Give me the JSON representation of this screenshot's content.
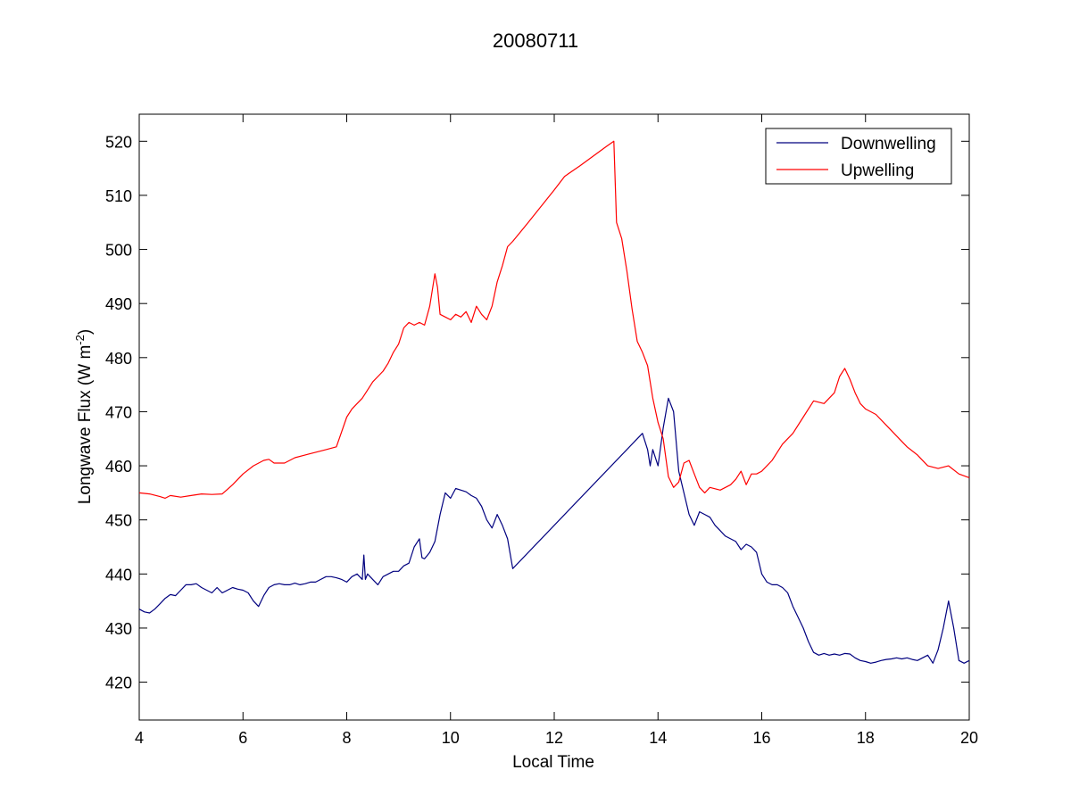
{
  "chart_data": {
    "type": "line",
    "title": "20080711",
    "xlabel": "Local Time",
    "ylabel": "Longwave Flux (W m",
    "ylabel_superscript": "-2",
    "ylabel_close": ")",
    "xlim": [
      4,
      20
    ],
    "ylim": [
      413,
      525
    ],
    "xticks": [
      4,
      6,
      8,
      10,
      12,
      14,
      16,
      18,
      20
    ],
    "xtick_labels": [
      "4",
      "6",
      "8",
      "10",
      "12",
      "14",
      "16",
      "18",
      "20"
    ],
    "yticks": [
      420,
      430,
      440,
      450,
      460,
      470,
      480,
      490,
      500,
      510,
      520
    ],
    "ytick_labels": [
      "420",
      "430",
      "440",
      "450",
      "460",
      "470",
      "480",
      "490",
      "500",
      "510",
      "520"
    ],
    "grid": false,
    "legend_position": "top-right",
    "series": [
      {
        "name": "Downwelling",
        "color": "#00007f",
        "x": [
          4.0,
          4.1,
          4.2,
          4.3,
          4.4,
          4.5,
          4.6,
          4.7,
          4.8,
          4.9,
          5.0,
          5.1,
          5.2,
          5.3,
          5.4,
          5.5,
          5.6,
          5.7,
          5.8,
          5.9,
          6.0,
          6.1,
          6.2,
          6.3,
          6.4,
          6.5,
          6.6,
          6.7,
          6.8,
          6.9,
          7.0,
          7.1,
          7.2,
          7.3,
          7.4,
          7.5,
          7.6,
          7.7,
          7.8,
          7.9,
          8.0,
          8.1,
          8.2,
          8.3,
          8.33,
          8.36,
          8.4,
          8.5,
          8.6,
          8.7,
          8.8,
          8.9,
          9.0,
          9.1,
          9.2,
          9.3,
          9.4,
          9.45,
          9.5,
          9.6,
          9.7,
          9.8,
          9.9,
          10.0,
          10.1,
          10.2,
          10.3,
          10.4,
          10.5,
          10.6,
          10.7,
          10.8,
          10.9,
          11.0,
          11.1,
          11.2,
          13.7,
          13.8,
          13.85,
          13.9,
          14.0,
          14.1,
          14.2,
          14.3,
          14.4,
          14.5,
          14.6,
          14.7,
          14.8,
          14.9,
          15.0,
          15.1,
          15.2,
          15.3,
          15.4,
          15.5,
          15.6,
          15.7,
          15.8,
          15.9,
          16.0,
          16.1,
          16.2,
          16.3,
          16.4,
          16.5,
          16.6,
          16.7,
          16.8,
          16.9,
          17.0,
          17.1,
          17.2,
          17.3,
          17.4,
          17.5,
          17.6,
          17.7,
          17.8,
          17.9,
          18.0,
          18.1,
          18.2,
          18.3,
          18.4,
          18.5,
          18.6,
          18.7,
          18.8,
          18.9,
          19.0,
          19.1,
          19.2,
          19.3,
          19.4,
          19.5,
          19.6,
          19.7,
          19.8,
          19.9,
          20.0
        ],
        "values": [
          433.5,
          433.0,
          432.8,
          433.5,
          434.5,
          435.5,
          436.2,
          436.0,
          437.0,
          438.0,
          438.0,
          438.2,
          437.5,
          437.0,
          436.5,
          437.5,
          436.5,
          437.0,
          437.5,
          437.2,
          437.0,
          436.5,
          435.0,
          434.0,
          436.0,
          437.5,
          438.0,
          438.2,
          438.0,
          438.0,
          438.3,
          438.0,
          438.2,
          438.5,
          438.5,
          439.0,
          439.5,
          439.5,
          439.3,
          439.0,
          438.5,
          439.5,
          440.0,
          439.0,
          443.5,
          439.0,
          440.0,
          439.0,
          438.0,
          439.5,
          440.0,
          440.5,
          440.5,
          441.5,
          442.0,
          445.0,
          446.5,
          443.0,
          442.8,
          444.0,
          446.0,
          451.0,
          455.0,
          454.0,
          455.8,
          455.5,
          455.2,
          454.5,
          454.0,
          452.5,
          450.0,
          448.5,
          451.0,
          449.0,
          446.5,
          441.0,
          466.0,
          463.0,
          460.0,
          463.0,
          460.0,
          467.0,
          472.5,
          470.0,
          459.0,
          455.0,
          451.0,
          449.0,
          451.5,
          451.0,
          450.5,
          449.0,
          448.0,
          447.0,
          446.5,
          446.0,
          444.5,
          445.5,
          445.0,
          444.0,
          440.0,
          438.5,
          438.0,
          438.0,
          437.5,
          436.5,
          434.0,
          432.0,
          430.0,
          427.5,
          425.5,
          425.0,
          425.3,
          425.0,
          425.2,
          425.0,
          425.3,
          425.2,
          424.5,
          424.0,
          423.8,
          423.5,
          423.7,
          424.0,
          424.2,
          424.3,
          424.5,
          424.3,
          424.5,
          424.2,
          424.0,
          424.5,
          425.0,
          423.5,
          426.0,
          430.0,
          435.0,
          430.0,
          424.0,
          423.5,
          424.0
        ]
      },
      {
        "name": "Upwelling",
        "color": "#ff0000",
        "x": [
          4.0,
          4.2,
          4.4,
          4.5,
          4.6,
          4.8,
          5.0,
          5.2,
          5.4,
          5.6,
          5.8,
          6.0,
          6.2,
          6.4,
          6.5,
          6.6,
          6.8,
          7.0,
          7.2,
          7.4,
          7.6,
          7.8,
          8.0,
          8.1,
          8.2,
          8.3,
          8.4,
          8.5,
          8.6,
          8.7,
          8.8,
          8.9,
          9.0,
          9.1,
          9.2,
          9.3,
          9.4,
          9.5,
          9.6,
          9.7,
          9.75,
          9.8,
          9.9,
          10.0,
          10.1,
          10.2,
          10.3,
          10.4,
          10.5,
          10.6,
          10.7,
          10.8,
          10.9,
          11.0,
          11.1,
          11.2,
          11.5,
          12.0,
          12.2,
          12.5,
          13.0,
          13.15,
          13.2,
          13.3,
          13.4,
          13.5,
          13.6,
          13.7,
          13.8,
          13.9,
          14.0,
          14.1,
          14.2,
          14.3,
          14.4,
          14.5,
          14.6,
          14.7,
          14.8,
          14.9,
          15.0,
          15.2,
          15.4,
          15.5,
          15.6,
          15.7,
          15.8,
          15.9,
          16.0,
          16.2,
          16.4,
          16.6,
          16.8,
          17.0,
          17.2,
          17.4,
          17.5,
          17.6,
          17.7,
          17.8,
          17.9,
          18.0,
          18.2,
          18.4,
          18.6,
          18.8,
          19.0,
          19.2,
          19.4,
          19.6,
          19.8,
          20.0
        ],
        "values": [
          455.0,
          454.8,
          454.3,
          454.0,
          454.5,
          454.2,
          454.5,
          454.8,
          454.7,
          454.8,
          456.5,
          458.5,
          460.0,
          461.0,
          461.2,
          460.5,
          460.5,
          461.5,
          462.0,
          462.5,
          463.0,
          463.5,
          469.0,
          470.5,
          471.5,
          472.5,
          474.0,
          475.5,
          476.5,
          477.5,
          479.0,
          481.0,
          482.5,
          485.5,
          486.5,
          486.0,
          486.5,
          486.0,
          489.5,
          495.5,
          493.0,
          488.0,
          487.5,
          487.0,
          488.0,
          487.5,
          488.5,
          486.5,
          489.5,
          488.0,
          487.0,
          489.5,
          494.0,
          497.0,
          500.5,
          501.5,
          505.0,
          511.0,
          513.5,
          515.5,
          519.0,
          520.0,
          505.0,
          502.0,
          496.0,
          489.0,
          483.0,
          481.0,
          478.5,
          472.5,
          468.0,
          465.0,
          458.0,
          456.0,
          457.0,
          460.5,
          461.0,
          458.5,
          456.0,
          455.0,
          456.0,
          455.5,
          456.5,
          457.5,
          459.0,
          456.5,
          458.5,
          458.5,
          459.0,
          461.0,
          464.0,
          466.0,
          469.0,
          472.0,
          471.5,
          473.5,
          476.5,
          478.0,
          476.0,
          473.5,
          471.5,
          470.5,
          469.5,
          467.5,
          465.5,
          463.5,
          462.0,
          460.0,
          459.5,
          460.0,
          458.5,
          457.8
        ]
      }
    ]
  }
}
